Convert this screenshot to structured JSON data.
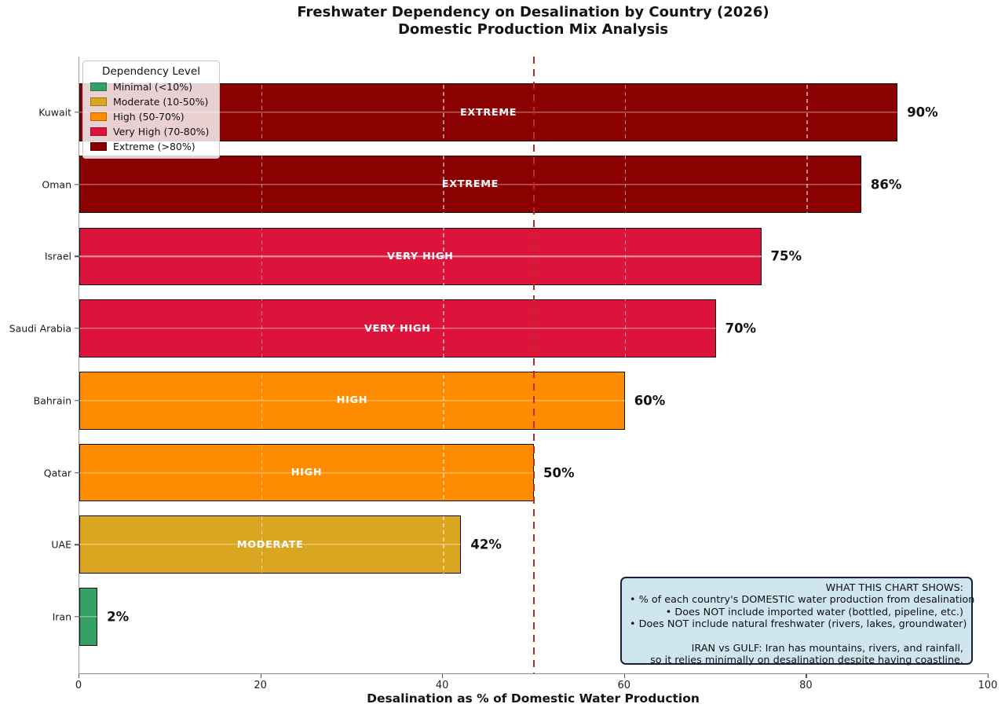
{
  "title": {
    "line1": "Freshwater Dependency on Desalination by Country (2026)",
    "line2": "Domestic Production Mix Analysis"
  },
  "legend": {
    "title": "Dependency Level",
    "items": [
      {
        "label": "Minimal (<10%)",
        "color": "#33A066"
      },
      {
        "label": "Moderate (10-50%)",
        "color": "#DAA520"
      },
      {
        "label": "High (50-70%)",
        "color": "#FF8C00"
      },
      {
        "label": "Very High (70-80%)",
        "color": "#DC143C"
      },
      {
        "label": "Extreme (>80%)",
        "color": "#8B0000"
      }
    ]
  },
  "chart_data": {
    "type": "bar",
    "orientation": "horizontal",
    "title": "Freshwater Dependency on Desalination by Country (2026) — Domestic Production Mix Analysis",
    "categories": [
      "Kuwait",
      "Oman",
      "Israel",
      "Saudi Arabia",
      "Bahrain",
      "Qatar",
      "UAE",
      "Iran"
    ],
    "values": [
      90,
      86,
      75,
      70,
      60,
      50,
      42,
      2
    ],
    "value_labels": [
      "90%",
      "86%",
      "75%",
      "70%",
      "60%",
      "50%",
      "42%",
      "2%"
    ],
    "bar_labels": [
      "EXTREME",
      "EXTREME",
      "VERY HIGH",
      "VERY HIGH",
      "HIGH",
      "HIGH",
      "MODERATE",
      ""
    ],
    "bar_colors": [
      "#8B0000",
      "#8B0000",
      "#DC143C",
      "#DC143C",
      "#FF8C00",
      "#FF8C00",
      "#DAA520",
      "#33A066"
    ],
    "xlabel": "Desalination as % of Domestic Water Production",
    "ylabel": "",
    "xlim": [
      0,
      100
    ],
    "xticks": [
      "0",
      "20",
      "40",
      "60",
      "80",
      "100"
    ],
    "xtick_values": [
      0,
      20,
      40,
      60,
      80,
      100
    ],
    "grid_x": [
      20,
      40,
      60,
      80
    ],
    "grid_on": true,
    "legend_position": "upper-left",
    "threshold_line": {
      "x": 50,
      "color": "#BF2B2B",
      "style": "dashed"
    }
  },
  "annotation_box": {
    "lines": [
      "WHAT THIS CHART SHOWS:",
      "• % of each country's DOMESTIC water production from desalination",
      "• Does NOT include imported water (bottled, pipeline, etc.)",
      "• Does NOT include natural freshwater (rivers, lakes, groundwater)",
      "",
      "IRAN vs GULF: Iran has mountains, rivers, and rainfall,",
      "so it relies minimally on desalination despite having coastline."
    ]
  }
}
